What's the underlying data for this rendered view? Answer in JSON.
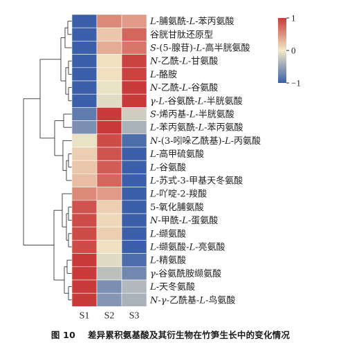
{
  "caption": {
    "number": "图 10",
    "text": "差异累积氨基酸及其衍生物在竹笋生长中的变化情况"
  },
  "chart_data": {
    "type": "heatmap",
    "columns": [
      "S1",
      "S2",
      "S3"
    ],
    "rows": [
      "L-脯氨酰-L-苯丙氨酸",
      "谷胱甘肽还原型",
      "S-(5-腺苷)-L-高半胱氨酸",
      "N-乙酰-L-甘氨酸",
      "L-酪胺",
      "N-乙酰-L-谷氨酸",
      "γ-L-谷氨酰-L-半胱氨酸",
      "S-烯丙基-L-半胱氨酸",
      "L-苯丙氨酰-L-苯丙氨酸",
      "N-(3-吲哚乙酰基)-L-丙氨酸",
      "L-高甲硫氨酸",
      "L-谷氨酸",
      "L-苏式-3-甲基天冬氨酸",
      "L-吖啶-2-羧酸",
      "5-氧化脯氨酸",
      "N-甲酰-L-蛋氨酸",
      "L-缬氨酸",
      "L-缬氨酸-L-亮氨酸",
      "L-精氨酸",
      "γ-谷氨酰胺缬氨酸",
      "L-天冬氨酸",
      "N-γ-乙酰基-L-鸟氨酸"
    ],
    "values": [
      [
        -1.0,
        0.55,
        0.45
      ],
      [
        -1.0,
        0.2,
        0.75
      ],
      [
        -1.0,
        0.35,
        0.65
      ],
      [
        -1.0,
        0.05,
        0.95
      ],
      [
        -1.0,
        0.05,
        0.95
      ],
      [
        -1.0,
        -0.05,
        1.0
      ],
      [
        -1.0,
        -0.1,
        1.0
      ],
      [
        -0.8,
        1.0,
        -0.2
      ],
      [
        -0.65,
        1.0,
        -0.4
      ],
      [
        -0.05,
        0.9,
        -0.9
      ],
      [
        0.15,
        0.85,
        -1.0
      ],
      [
        0.2,
        0.8,
        -1.0
      ],
      [
        0.25,
        0.75,
        -1.0
      ],
      [
        0.55,
        0.45,
        -1.0
      ],
      [
        0.85,
        0.15,
        -1.0
      ],
      [
        0.9,
        0.1,
        -1.0
      ],
      [
        0.9,
        0.15,
        -1.0
      ],
      [
        0.9,
        0.05,
        -1.0
      ],
      [
        1.0,
        -0.1,
        -0.9
      ],
      [
        1.0,
        -0.3,
        -0.7
      ],
      [
        1.0,
        -0.65,
        -0.35
      ],
      [
        1.0,
        -0.6,
        -0.4
      ]
    ],
    "colorbar": {
      "ticks": [
        1,
        0,
        -1
      ],
      "tick_labels": [
        "1",
        "0",
        "−1"
      ],
      "range": [
        -1,
        1
      ]
    },
    "colors": {
      "low": "#3b5fa8",
      "mid": "#f2e9c6",
      "high": "#c93a3a"
    },
    "dendrogram": "row clustering, left side"
  }
}
